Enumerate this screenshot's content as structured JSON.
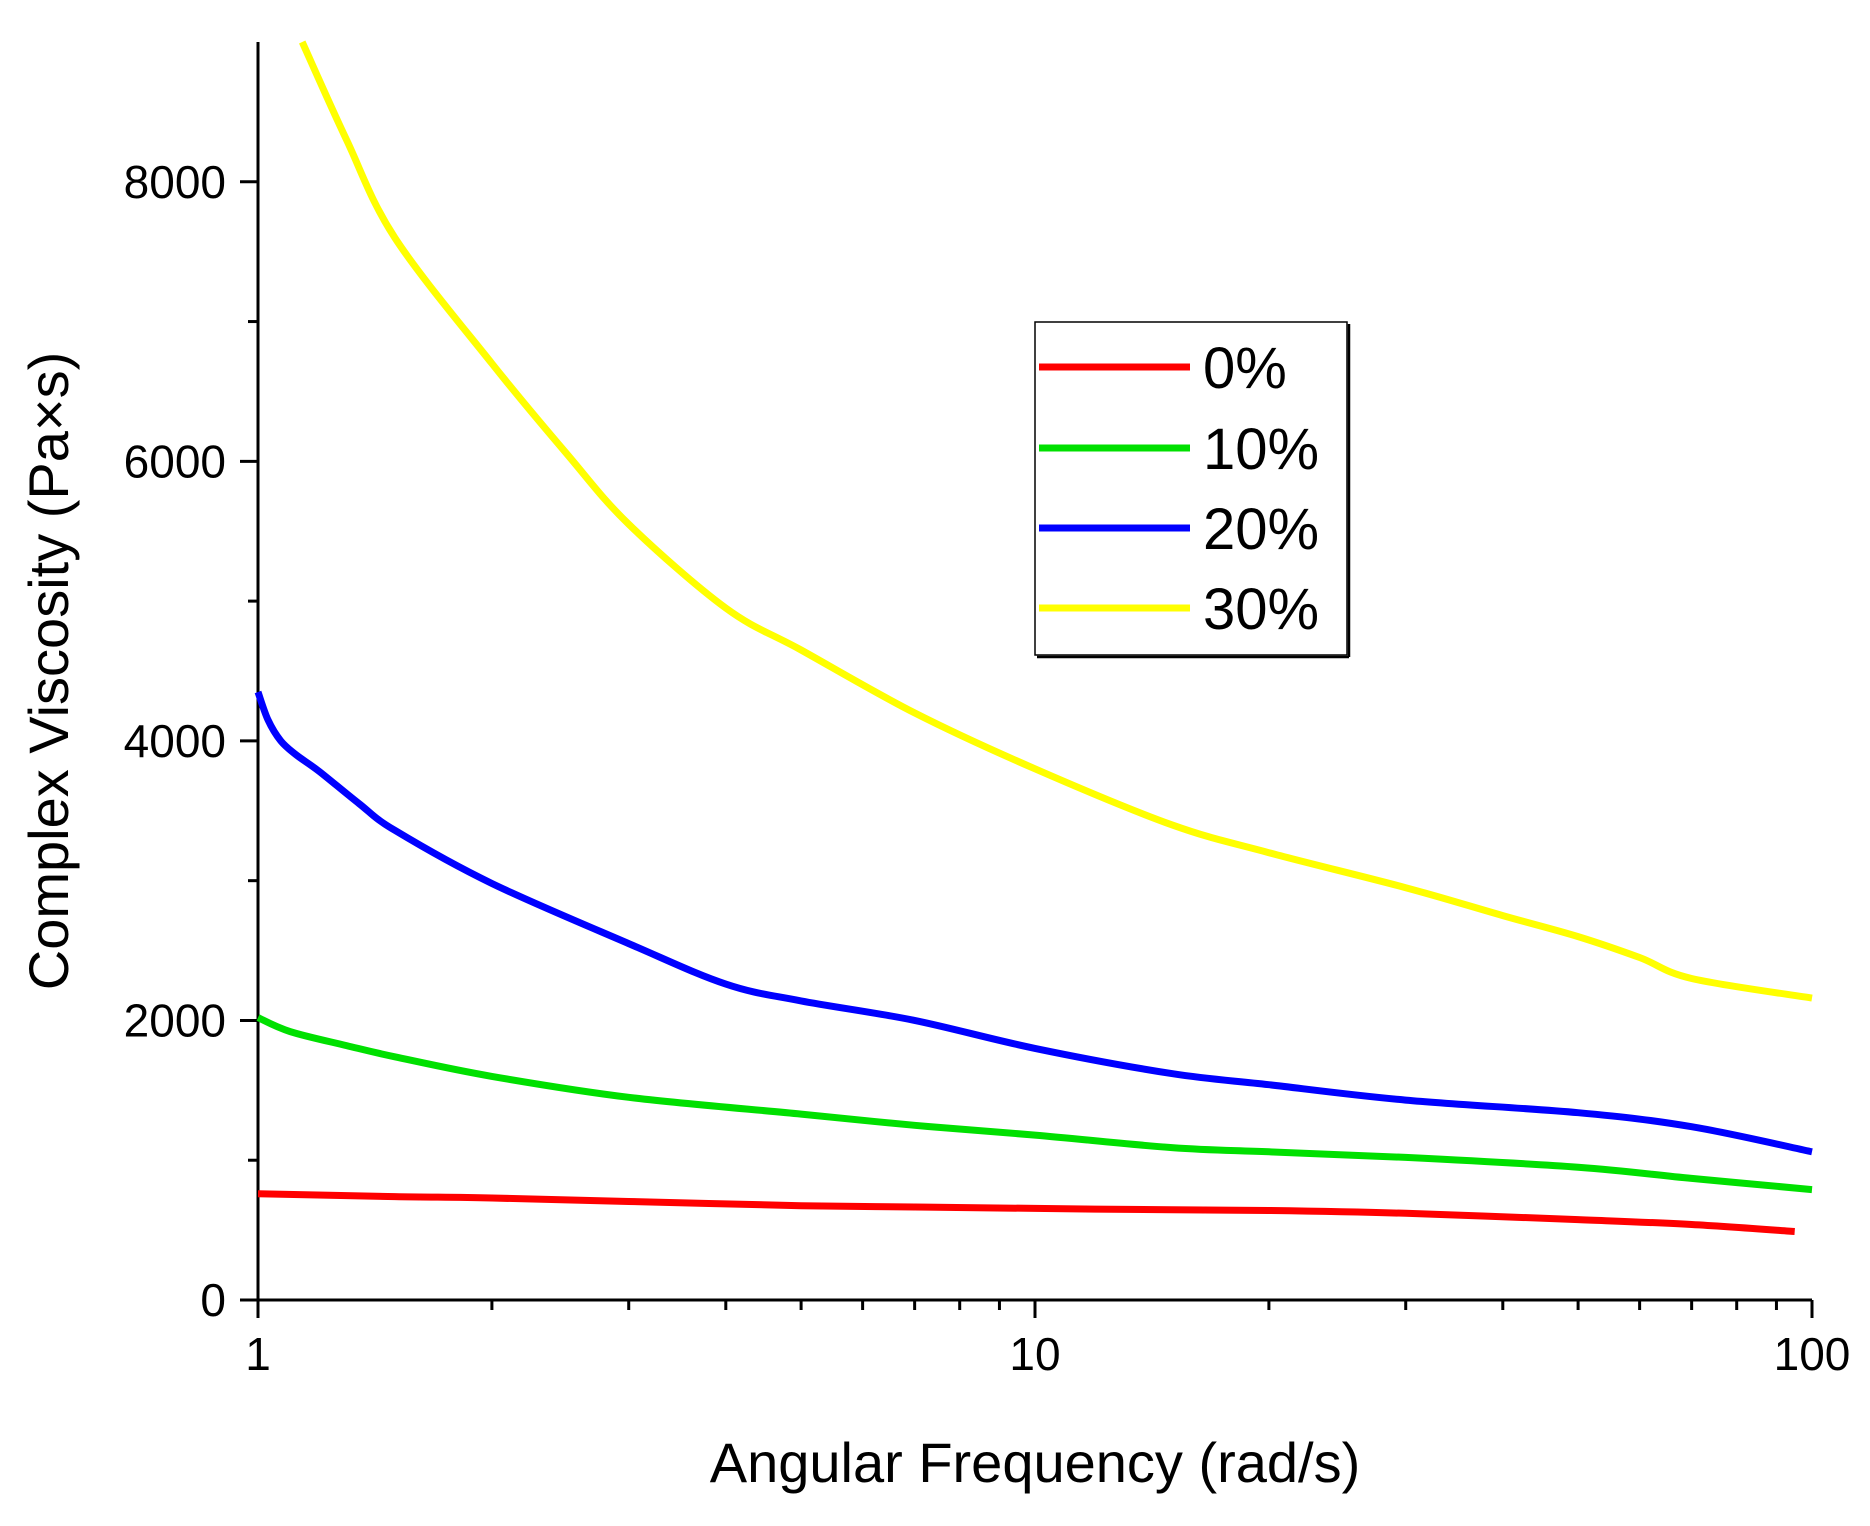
{
  "chart_data": {
    "type": "line",
    "title": "",
    "xlabel": "Angular Frequency (rad/s)",
    "ylabel": "Complex Viscosity (Pa×s)",
    "xscale": "log",
    "xlim": [
      1,
      100
    ],
    "ylim": [
      0,
      9000
    ],
    "xticks": [
      1,
      10,
      100
    ],
    "xtick_labels": [
      "1",
      "10",
      "100"
    ],
    "yticks": [
      0,
      2000,
      4000,
      6000,
      8000
    ],
    "ytick_labels": [
      "0",
      "2000",
      "4000",
      "6000",
      "8000"
    ],
    "grid": false,
    "legend_position": "upper-center",
    "colors": {
      "axis": "#000000",
      "legend_border": "#000000"
    },
    "series": [
      {
        "name": "0%",
        "color": "#ff0000",
        "x": [
          1,
          1.5,
          2,
          3,
          5,
          7,
          10,
          15,
          20,
          30,
          50,
          70,
          95
        ],
        "y": [
          760,
          740,
          730,
          705,
          675,
          665,
          655,
          645,
          640,
          620,
          575,
          540,
          490
        ]
      },
      {
        "name": "10%",
        "color": "#00e000",
        "x": [
          1,
          1.1,
          1.3,
          1.5,
          2,
          3,
          5,
          7,
          10,
          15,
          20,
          30,
          50,
          70,
          100
        ],
        "y": [
          2020,
          1920,
          1820,
          1740,
          1600,
          1450,
          1330,
          1250,
          1180,
          1090,
          1060,
          1020,
          950,
          870,
          790
        ]
      },
      {
        "name": "20%",
        "color": "#0000ff",
        "x": [
          1,
          1.03,
          1.07,
          1.12,
          1.2,
          1.35,
          1.5,
          2,
          3,
          4,
          5,
          7,
          10,
          15,
          20,
          30,
          50,
          70,
          100
        ],
        "y": [
          4350,
          4150,
          4000,
          3900,
          3780,
          3550,
          3360,
          2980,
          2550,
          2260,
          2140,
          2000,
          1800,
          1620,
          1540,
          1430,
          1340,
          1240,
          1060
        ]
      },
      {
        "name": "30%",
        "color": "#ffff00",
        "x": [
          1.14,
          1.3,
          1.5,
          2,
          2.5,
          3,
          4,
          5,
          7,
          10,
          15,
          20,
          30,
          40,
          50,
          60,
          70,
          100
        ],
        "y": [
          9000,
          8300,
          7600,
          6700,
          6050,
          5550,
          4950,
          4650,
          4200,
          3800,
          3400,
          3200,
          2950,
          2750,
          2600,
          2450,
          2300,
          2160
        ]
      }
    ]
  }
}
